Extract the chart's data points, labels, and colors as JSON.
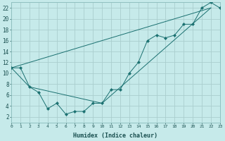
{
  "xlabel": "Humidex (Indice chaleur)",
  "background_color": "#c6eaea",
  "grid_color": "#aacece",
  "line_color": "#1a7070",
  "marker_color": "#1a7070",
  "xlim": [
    0,
    23
  ],
  "ylim": [
    1,
    23
  ],
  "xticks": [
    0,
    1,
    2,
    3,
    4,
    5,
    6,
    7,
    8,
    9,
    10,
    11,
    12,
    13,
    14,
    15,
    16,
    17,
    18,
    19,
    20,
    21,
    22,
    23
  ],
  "yticks": [
    2,
    4,
    6,
    8,
    10,
    12,
    14,
    16,
    18,
    20,
    22
  ],
  "series1_x": [
    0,
    1,
    2,
    3,
    4,
    5,
    6,
    7,
    8,
    9,
    10,
    11,
    12,
    13,
    14,
    15,
    16,
    17,
    18,
    19,
    20,
    21,
    22,
    23
  ],
  "series1_y": [
    11,
    11,
    7.5,
    6.5,
    3.5,
    4.5,
    2.5,
    3,
    3,
    4.5,
    4.5,
    7,
    7,
    10,
    12,
    16,
    17,
    16.5,
    17,
    19,
    19,
    22,
    23,
    22
  ],
  "series2_x": [
    0,
    2,
    10,
    22
  ],
  "series2_y": [
    11,
    7.5,
    4.5,
    22
  ],
  "series3_x": [
    0,
    22
  ],
  "series3_y": [
    11,
    22
  ]
}
